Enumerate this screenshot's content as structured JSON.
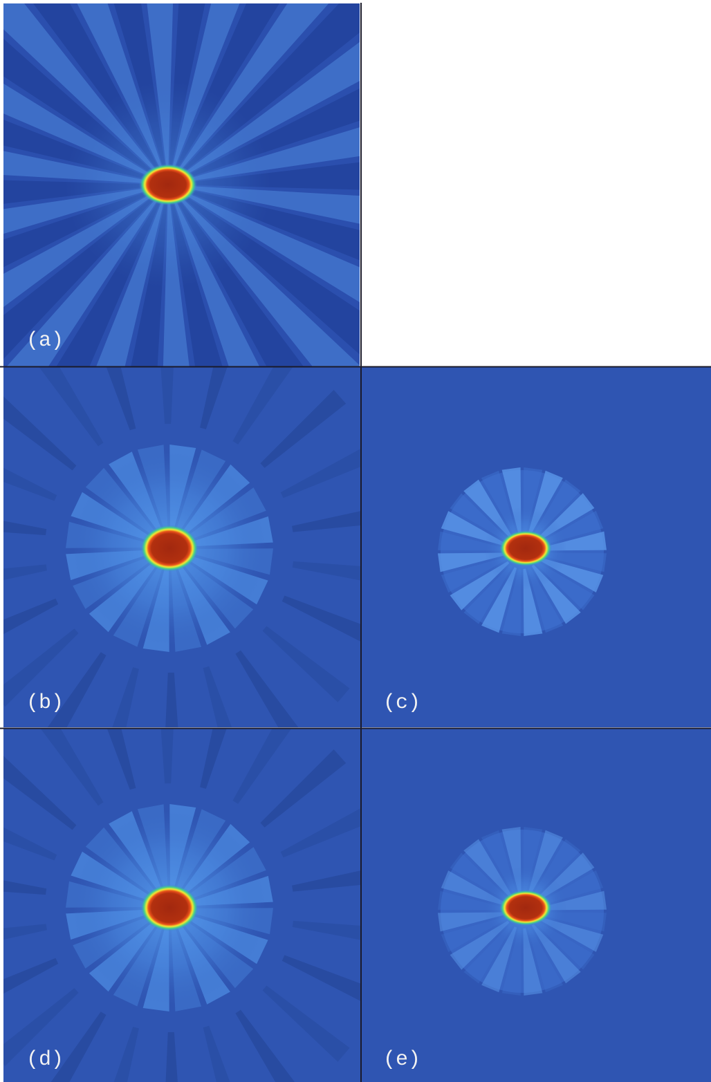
{
  "panels": [
    {
      "label": "(a)"
    },
    {
      "label": "(b)"
    },
    {
      "label": "(c)"
    },
    {
      "label": "(d)"
    },
    {
      "label": "(e)"
    }
  ]
}
